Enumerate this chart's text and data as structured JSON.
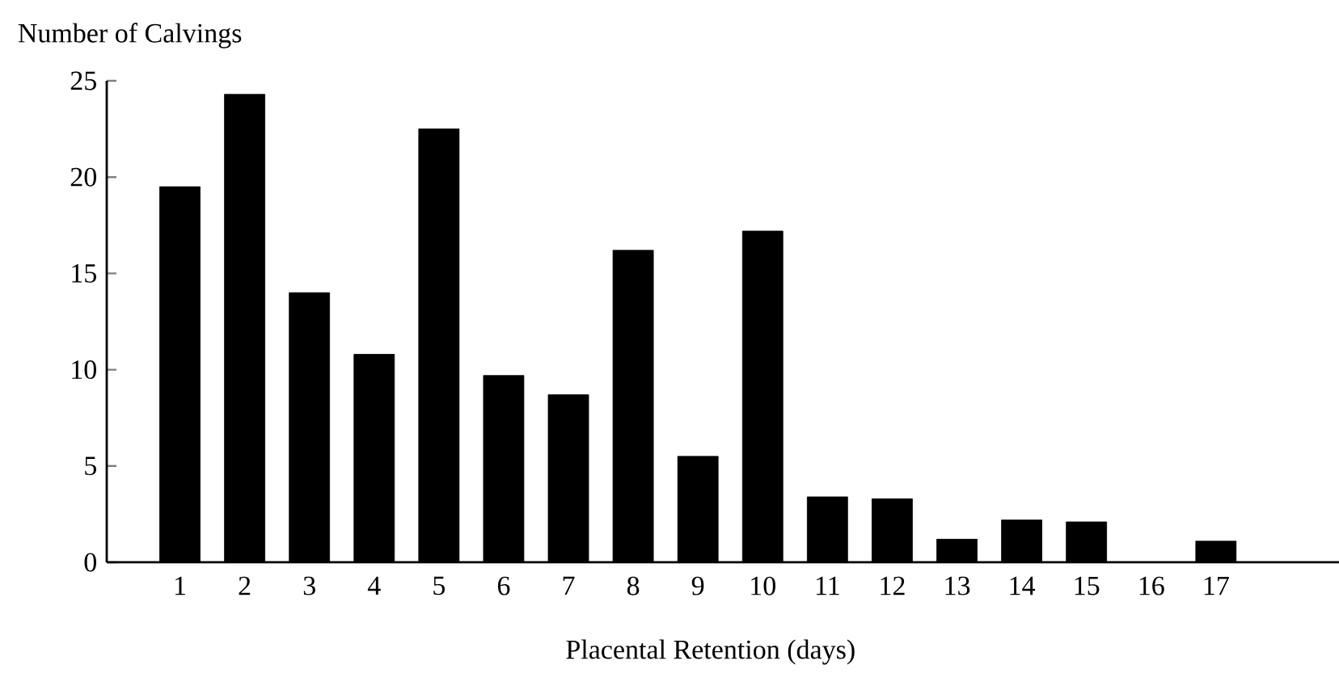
{
  "chart_data": {
    "type": "bar",
    "xlabel": "Placental Retention (days)",
    "ylabel": "Number of Calvings",
    "categories": [
      "1",
      "2",
      "3",
      "4",
      "5",
      "6",
      "7",
      "8",
      "9",
      "10",
      "11",
      "12",
      "13",
      "14",
      "15",
      "16",
      "17"
    ],
    "values": [
      19.5,
      24.3,
      14.0,
      10.8,
      22.5,
      9.7,
      8.7,
      16.2,
      5.5,
      17.2,
      3.4,
      3.3,
      1.2,
      2.2,
      2.1,
      0,
      1.1
    ],
    "color": "#000000",
    "ylim": [
      0,
      25
    ],
    "yticks": [
      0,
      5,
      10,
      15,
      20,
      25
    ]
  }
}
